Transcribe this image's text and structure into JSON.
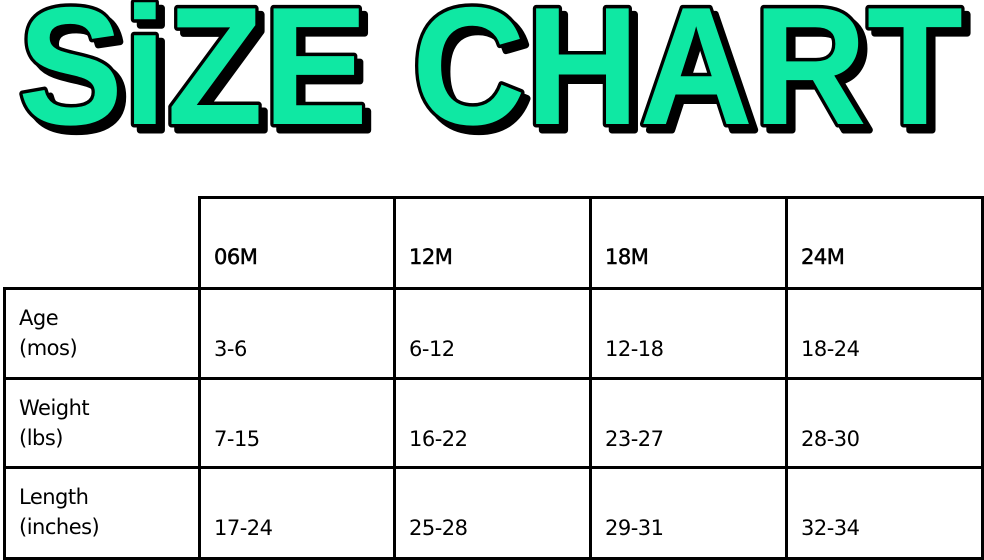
{
  "title": "SiZE CHART",
  "colors": {
    "title_fill": "#0FE8A3",
    "title_outline": "#000000",
    "grid": "#000000"
  },
  "table": {
    "columns": [
      "06M",
      "12M",
      "18M",
      "24M"
    ],
    "rows": [
      {
        "label_line1": "Age",
        "label_line2": "(mos)",
        "values": [
          "3-6",
          "6-12",
          "12-18",
          "18-24"
        ]
      },
      {
        "label_line1": "Weight",
        "label_line2": "(lbs)",
        "values": [
          "7-15",
          "16-22",
          "23-27",
          "28-30"
        ]
      },
      {
        "label_line1": "Length",
        "label_line2": "(inches)",
        "values": [
          "17-24",
          "25-28",
          "29-31",
          "32-34"
        ]
      }
    ]
  }
}
